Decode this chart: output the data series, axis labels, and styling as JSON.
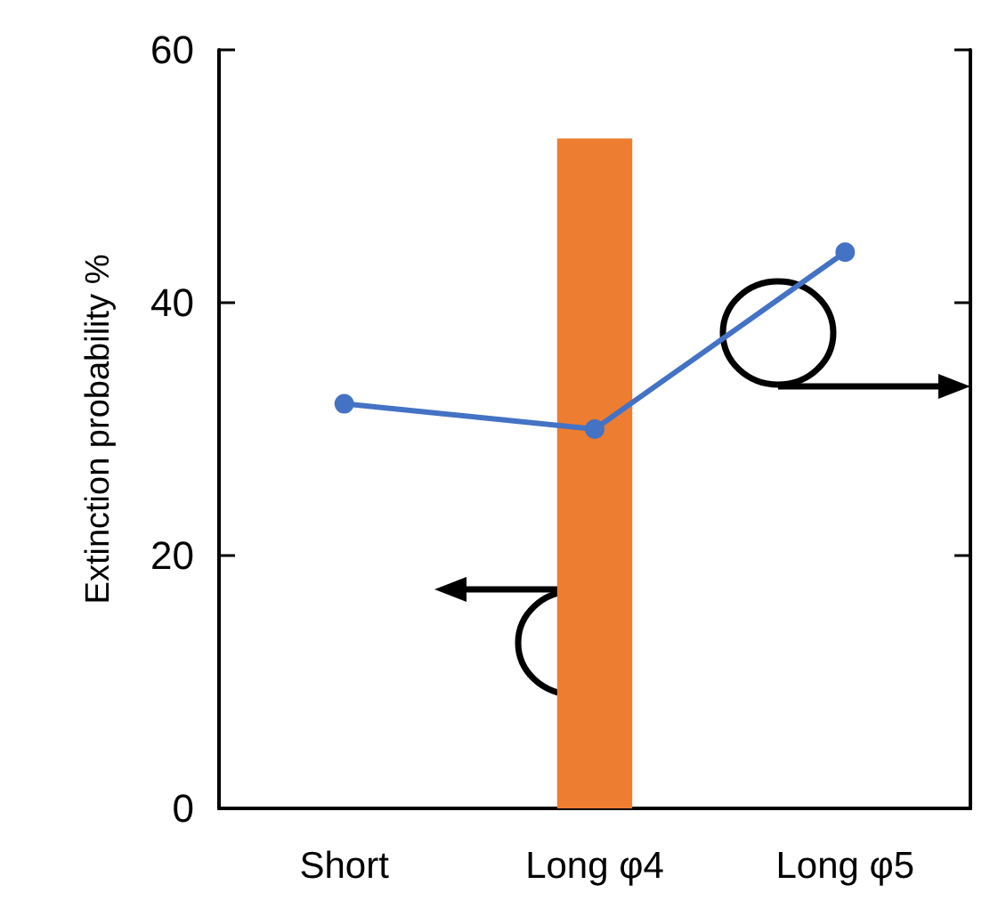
{
  "chart_data": {
    "type": "bar",
    "ylabel": "Extinction probability %",
    "categories": [
      "Short",
      "Long φ4",
      "Long φ5"
    ],
    "series": [
      {
        "color": "#ed7d31",
        "values": [
          null,
          53,
          null
        ]
      },
      {
        "type": "line",
        "color": "#4472c4",
        "values": [
          32,
          30,
          44
        ]
      }
    ],
    "ylim": [
      0,
      60
    ],
    "yticks": [
      0,
      20,
      40,
      60
    ],
    "grid": false,
    "marker": "circle"
  }
}
